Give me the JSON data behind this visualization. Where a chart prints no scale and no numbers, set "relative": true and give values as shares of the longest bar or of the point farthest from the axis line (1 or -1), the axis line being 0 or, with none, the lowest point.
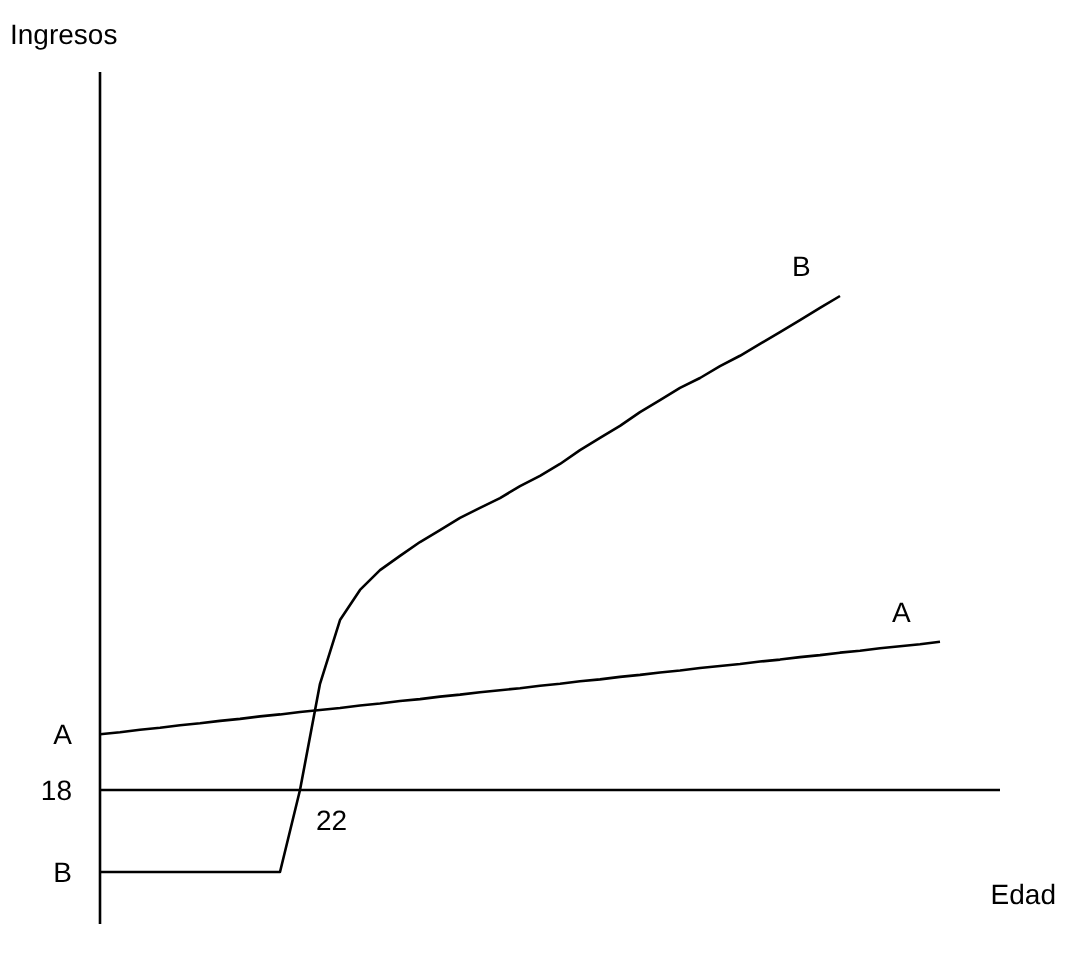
{
  "chart_data": {
    "type": "line",
    "relative": true,
    "xlabel": "Edad",
    "categories": [
      null,
      null,
      null,
      null,
      null,
      null,
      null,
      null,
      null,
      null,
      null,
      null,
      null,
      null,
      null,
      null,
      null,
      null,
      null,
      null,
      null,
      null,
      null,
      null,
      null,
      null,
      null,
      null,
      null,
      null,
      null,
      null,
      null,
      null,
      null,
      null,
      null,
      null,
      null,
      null,
      null,
      null,
      null
    ],
    "series": [
      {
        "name": "B",
        "color": "#000000",
        "values": [
          -0.166,
          -0.166,
          -0.166,
          -0.166,
          -0.166,
          -0.166,
          -0.166,
          -0.166,
          -0.166,
          -0.166,
          0.0,
          0.215,
          0.344,
          0.405,
          0.445,
          0.474,
          0.502,
          0.526,
          0.551,
          0.571,
          0.591,
          0.615,
          0.636,
          0.66,
          0.688,
          0.713,
          0.737,
          0.765,
          0.789,
          0.814,
          0.834,
          0.858,
          0.879,
          0.903,
          0.927,
          0.951,
          0.976,
          1,
          null,
          null,
          null,
          null,
          null
        ]
      },
      {
        "name": "A",
        "color": "#000000",
        "values": [
          0.113,
          0.117,
          0.122,
          0.126,
          0.131,
          0.135,
          0.14,
          0.144,
          0.149,
          0.153,
          0.158,
          0.162,
          0.166,
          0.171,
          0.175,
          0.18,
          0.184,
          0.189,
          0.193,
          0.198,
          0.202,
          0.206,
          0.211,
          0.215,
          0.22,
          0.224,
          0.229,
          0.233,
          0.238,
          0.242,
          0.247,
          0.251,
          0.255,
          0.26,
          0.264,
          0.269,
          0.273,
          0.278,
          0.282,
          0.287,
          0.291,
          0.295,
          0.3
        ]
      }
    ],
    "annotations": [
      "A",
      "18",
      "B",
      "22",
      "Ingresos"
    ]
  }
}
